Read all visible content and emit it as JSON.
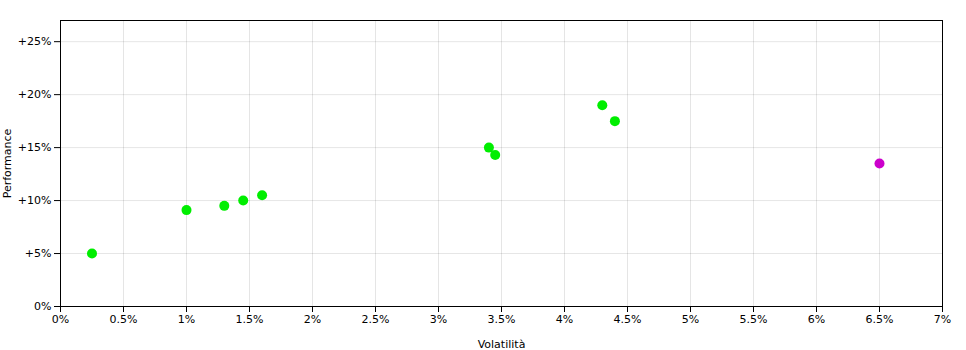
{
  "chart_data": {
    "type": "scatter",
    "xlabel": "Volatilità",
    "ylabel": "Performance",
    "x": [
      0.0025,
      0.01,
      0.013,
      0.0145,
      0.016,
      0.034,
      0.0345,
      0.043,
      0.044,
      0.065
    ],
    "values": [
      0.05,
      0.091,
      0.095,
      0.1,
      0.105,
      0.15,
      0.143,
      0.19,
      0.175,
      0.135
    ],
    "colors": [
      "#00ee00",
      "#00ee00",
      "#00ee00",
      "#00ee00",
      "#00ee00",
      "#00ee00",
      "#00ee00",
      "#00ee00",
      "#00ee00",
      "#cc00cc"
    ],
    "xlim": [
      0.0,
      0.07
    ],
    "ylim": [
      0.0,
      0.27
    ],
    "xticks": [
      {
        "value": 0.0,
        "label": "0%"
      },
      {
        "value": 0.005,
        "label": "0.5%"
      },
      {
        "value": 0.01,
        "label": "1%"
      },
      {
        "value": 0.015,
        "label": "1.5%"
      },
      {
        "value": 0.02,
        "label": "2%"
      },
      {
        "value": 0.025,
        "label": "2.5%"
      },
      {
        "value": 0.03,
        "label": "3%"
      },
      {
        "value": 0.035,
        "label": "3.5%"
      },
      {
        "value": 0.04,
        "label": "4%"
      },
      {
        "value": 0.045,
        "label": "4.5%"
      },
      {
        "value": 0.05,
        "label": "5%"
      },
      {
        "value": 0.055,
        "label": "5.5%"
      },
      {
        "value": 0.06,
        "label": "6%"
      },
      {
        "value": 0.065,
        "label": "6.5%"
      },
      {
        "value": 0.07,
        "label": "7%"
      }
    ],
    "yticks": [
      {
        "value": 0.0,
        "label": "0%"
      },
      {
        "value": 0.05,
        "label": "+5%"
      },
      {
        "value": 0.1,
        "label": "+10%"
      },
      {
        "value": 0.15,
        "label": "+15%"
      },
      {
        "value": 0.2,
        "label": "+20%"
      },
      {
        "value": 0.25,
        "label": "+25%"
      }
    ],
    "grid": true
  }
}
